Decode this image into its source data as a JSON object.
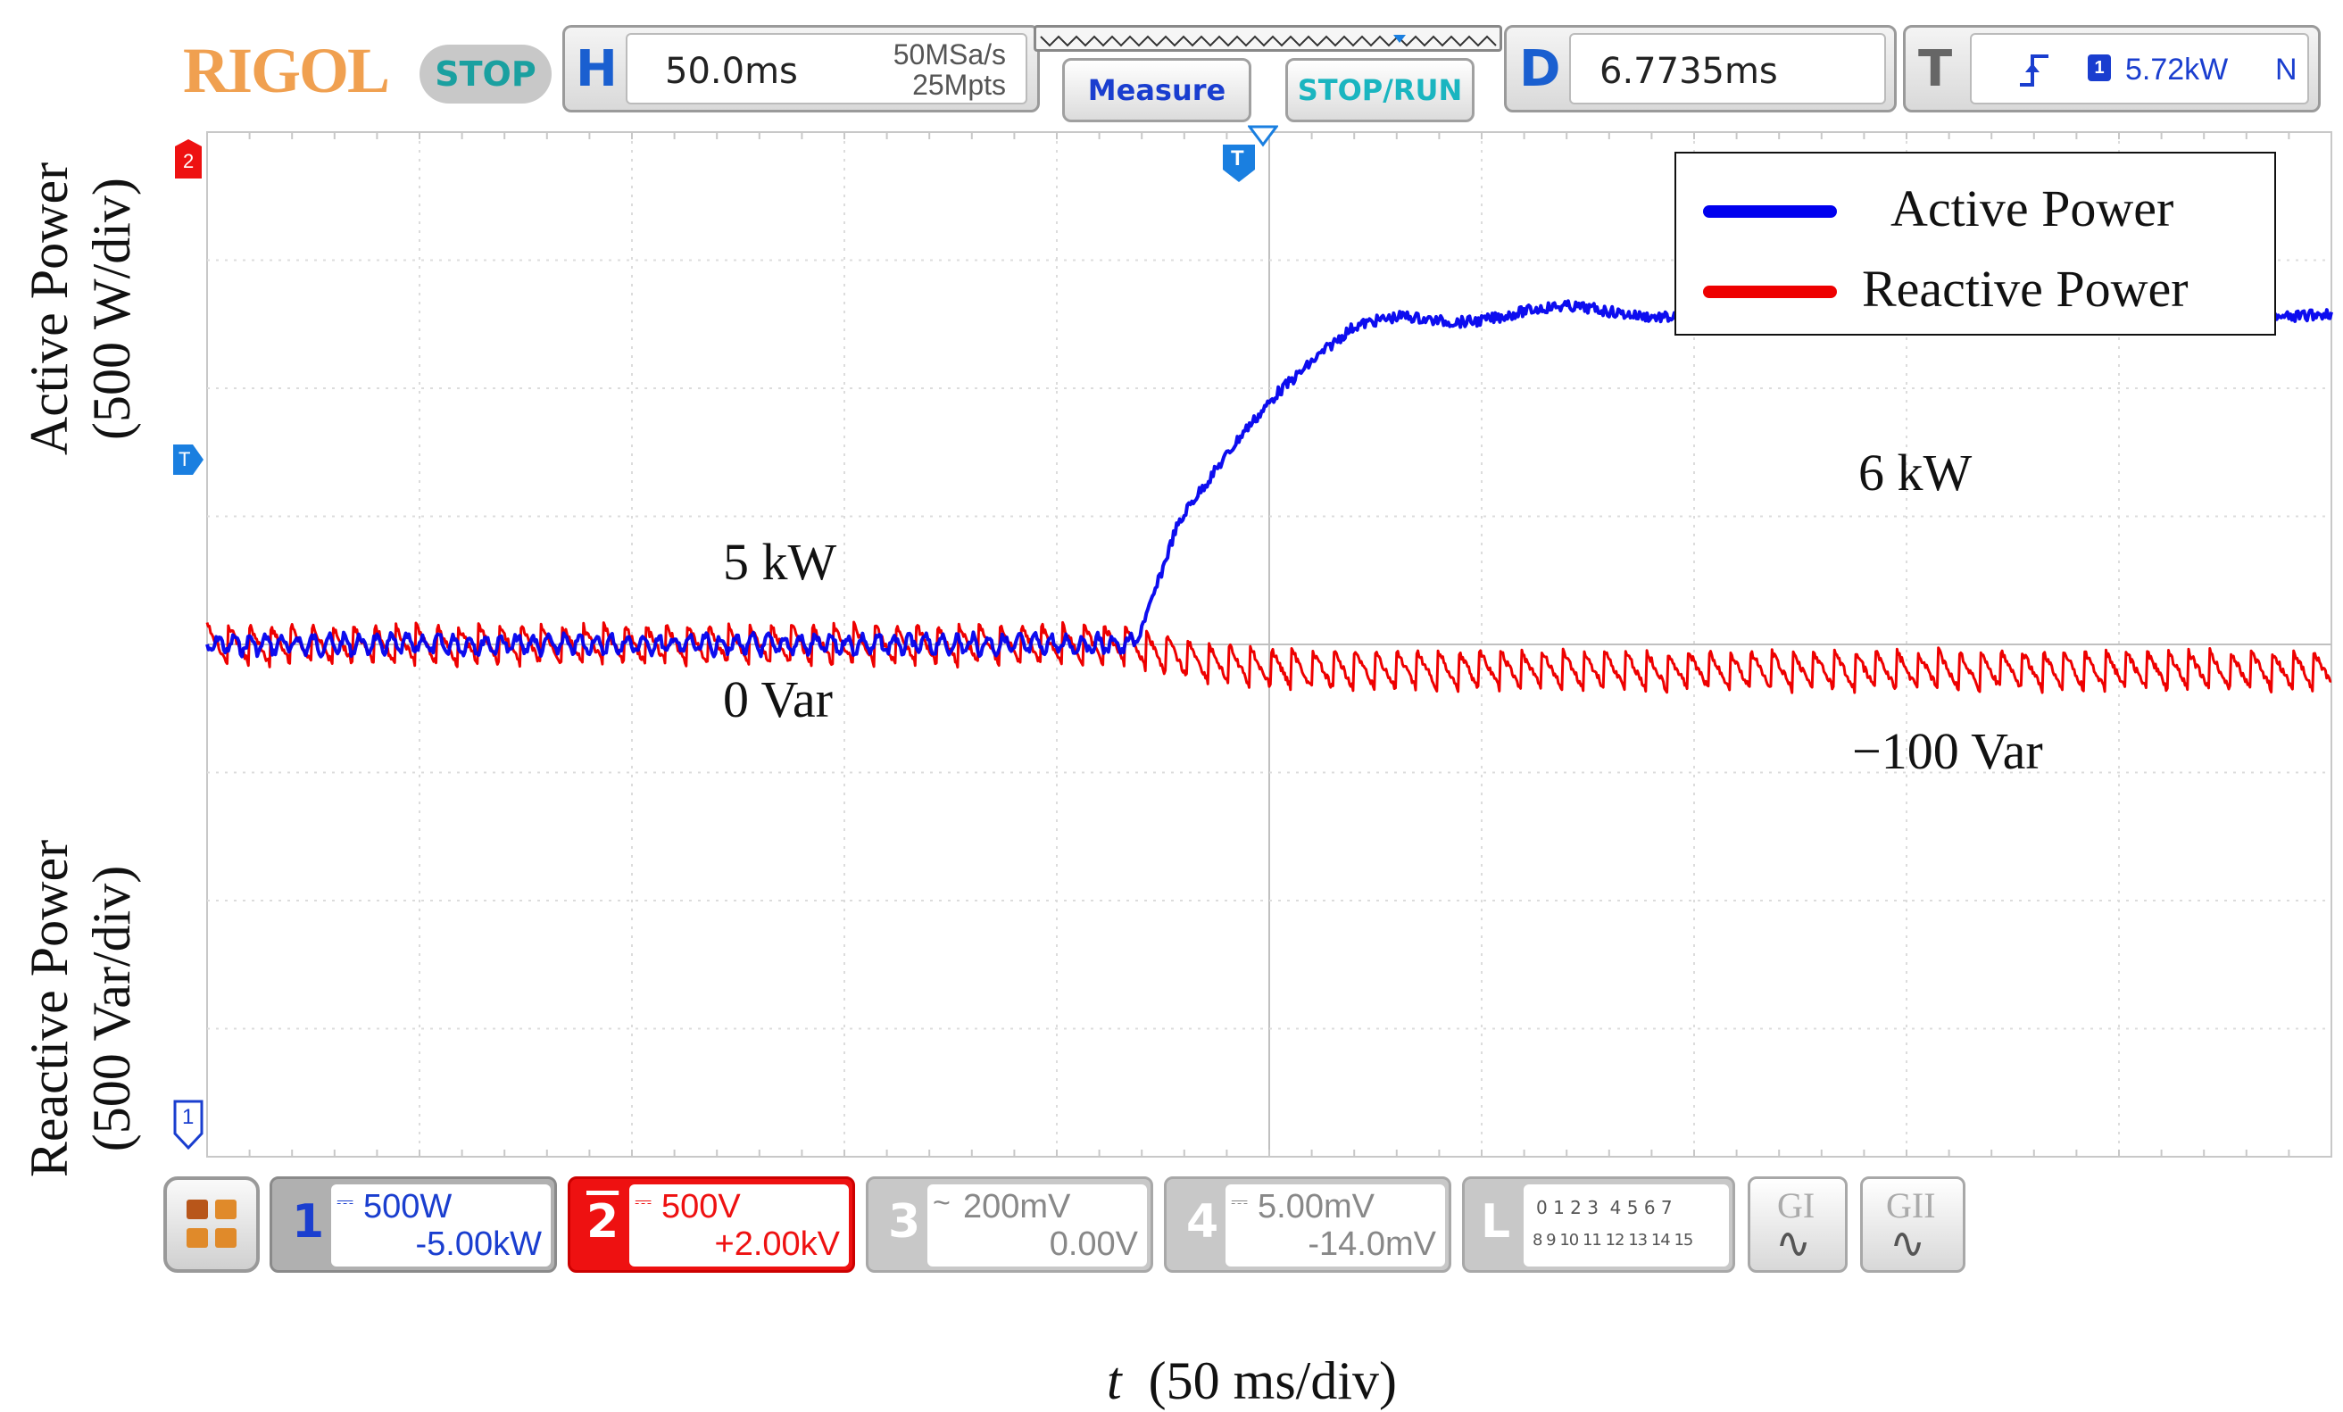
{
  "header": {
    "brand": "RIGOL",
    "run_state": "STOP",
    "horizontal": {
      "letter": "H",
      "timebase": "50.0ms",
      "sample_rate": "50MSa/s",
      "memory_depth": "25Mpts"
    },
    "measure_label": "Measure",
    "stop_run_label": "STOP/RUN",
    "delay": {
      "letter": "D",
      "value": "6.7735ms"
    },
    "trigger": {
      "letter": "T",
      "level": "5.72kW",
      "mode": "N",
      "source": "1"
    }
  },
  "markers": {
    "ch2": "2",
    "trigger_pos": "T",
    "trigger_level": "T",
    "ch1": "1"
  },
  "annotations": {
    "y_top_label_line1": "Active Power",
    "y_top_label_line2": "(500 W/div)",
    "y_bottom_label_line1": "Reactive Power",
    "y_bottom_label_line2": "(500 Var/div)",
    "x_label_italic": "t",
    "x_label_rest": "(50 ms/div)",
    "active_before": "5 kW",
    "active_after": "6 kW",
    "reactive_before": "0 Var",
    "reactive_after": "−100 Var"
  },
  "legend": [
    {
      "name": "Active Power",
      "color": "#0000ee"
    },
    {
      "name": "Reactive Power",
      "color": "#ee0000"
    }
  ],
  "channels": [
    {
      "num": "1",
      "scale": "500W",
      "offset": "-5.00kW",
      "color": "#1a3ecf"
    },
    {
      "num": "2",
      "scale": "500V",
      "offset": "+2.00kV",
      "color": "#ee1111"
    },
    {
      "num": "3",
      "scale": "200mV",
      "offset": "0.00V",
      "color": "#b5b5b5"
    },
    {
      "num": "4",
      "scale": "5.00mV",
      "offset": "-14.0mV",
      "color": "#b5b5b5"
    }
  ],
  "logic": {
    "letter": "L",
    "row1": "0 1 2 3  4 5 6 7",
    "row2": "8 9 10 11 12 13 14 15"
  },
  "gen": [
    {
      "label": "GI"
    },
    {
      "label": "GII"
    }
  ],
  "chart_data": {
    "type": "line",
    "title": "",
    "xlabel": "t  (50 ms/div)",
    "ylabel": "Active Power (500 W/div) / Reactive Power (500 Var/div)",
    "x_unit": "ms",
    "xlim": [
      0,
      500
    ],
    "x_divisions": 10,
    "y_divisions": 8,
    "grid": true,
    "legend_position": "top-right",
    "series": [
      {
        "name": "Active Power",
        "color": "#0000ee",
        "unit": "kW",
        "points": [
          [
            0,
            5.0
          ],
          [
            218,
            5.0
          ],
          [
            222,
            5.15
          ],
          [
            228,
            5.45
          ],
          [
            236,
            5.65
          ],
          [
            244,
            5.85
          ],
          [
            252,
            6.0
          ],
          [
            260,
            6.1
          ],
          [
            270,
            6.22
          ],
          [
            282,
            6.28
          ],
          [
            300,
            6.28
          ],
          [
            320,
            6.3
          ],
          [
            340,
            6.3
          ],
          [
            360,
            6.28
          ],
          [
            380,
            6.3
          ],
          [
            400,
            6.3
          ],
          [
            420,
            6.28
          ],
          [
            440,
            6.3
          ],
          [
            460,
            6.3
          ],
          [
            480,
            6.3
          ],
          [
            500,
            6.28
          ]
        ],
        "ripple_kw": 0.03
      },
      {
        "name": "Reactive Power",
        "color": "#ee0000",
        "unit": "Var",
        "points": [
          [
            0,
            0
          ],
          [
            218,
            0
          ],
          [
            225,
            -40
          ],
          [
            240,
            -80
          ],
          [
            260,
            -100
          ],
          [
            300,
            -100
          ],
          [
            350,
            -100
          ],
          [
            400,
            -100
          ],
          [
            450,
            -100
          ],
          [
            500,
            -100
          ]
        ],
        "ripple_var": 70
      }
    ],
    "annotations": [
      {
        "text": "5 kW",
        "x": 140,
        "y_kw": 5.0
      },
      {
        "text": "6 kW",
        "x": 390,
        "y_kw": 6.3
      },
      {
        "text": "0 Var",
        "x": 140,
        "y_var": 0
      },
      {
        "text": "−100 Var",
        "x": 390,
        "y_var": -100
      }
    ]
  }
}
